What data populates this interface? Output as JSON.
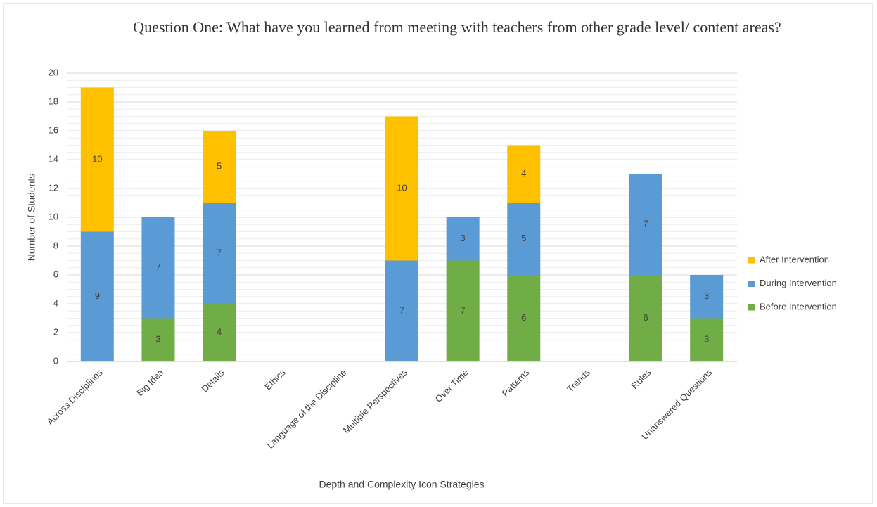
{
  "chart_data": {
    "type": "stacked_bar",
    "title": "Question One: What have you learned from meeting with teachers from other grade level/ content areas?",
    "x_label": "Depth and Complexity Icon Strategies",
    "y_label": "Number of Students",
    "categories": [
      "Across Disciplines",
      "Big Idea",
      "Details",
      "Ethics",
      "Language of the Discipline",
      "Multiple Perspectives",
      "Over Time",
      "Patterns",
      "Trends",
      "Rules",
      "Unanswered Questions"
    ],
    "series": [
      {
        "name": "Before Intervention",
        "color": "#70ad47",
        "values": [
          0,
          3,
          4,
          0,
          0,
          0,
          7,
          6,
          0,
          6,
          3
        ]
      },
      {
        "name": "During Intervention",
        "color": "#5b9bd5",
        "values": [
          9,
          7,
          7,
          0,
          0,
          7,
          3,
          5,
          0,
          7,
          3
        ]
      },
      {
        "name": "After Intervention",
        "color": "#ffc000",
        "values": [
          10,
          0,
          5,
          0,
          0,
          10,
          0,
          4,
          0,
          0,
          0
        ]
      }
    ],
    "ylim": [
      0,
      20
    ],
    "yticks": [
      0,
      2,
      4,
      6,
      8,
      10,
      12,
      14,
      16,
      18,
      20
    ],
    "grid": true,
    "legend": "right"
  }
}
